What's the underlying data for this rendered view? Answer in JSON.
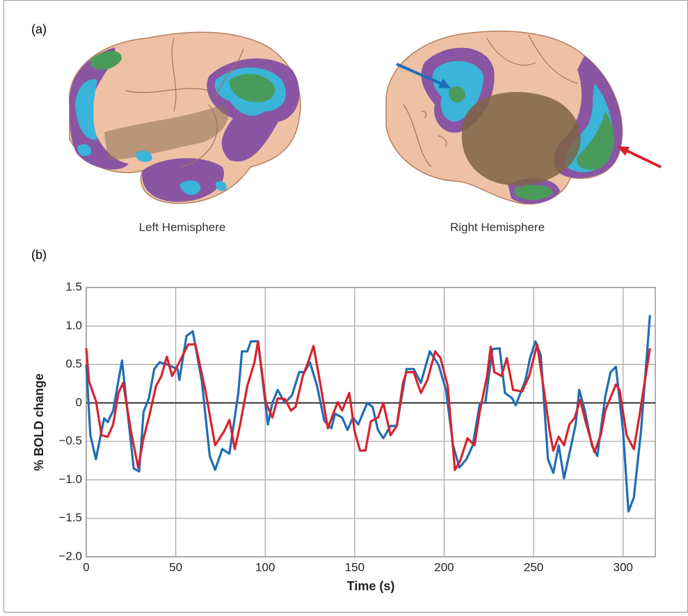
{
  "figure": {
    "panel_a": "(a)",
    "panel_b": "(b)",
    "left_caption": "Left Hemisphere",
    "right_caption": "Right Hemisphere"
  },
  "chart_data": {
    "type": "line",
    "xlabel": "Time (s)",
    "ylabel": "% BOLD change",
    "xlim": [
      0,
      318
    ],
    "ylim": [
      -2,
      1.5
    ],
    "xticks": [
      0,
      50,
      100,
      150,
      200,
      250,
      300
    ],
    "yticks": [
      {
        "value": 1.5,
        "label": "1.5"
      },
      {
        "value": 1,
        "label": "1.0"
      },
      {
        "value": 0.5,
        "label": "0.5"
      },
      0,
      {
        "value": -0.5,
        "label": "−0.5"
      },
      {
        "value": -1,
        "label": "−1.0"
      },
      {
        "value": -1.5,
        "label": "−1.5"
      },
      {
        "value": -2,
        "label": "−2.0"
      }
    ],
    "grid": true,
    "zero_line": true,
    "series": [
      {
        "color": "#1f6db5",
        "x": [
          0,
          2.3,
          5.4,
          10,
          12,
          15,
          20,
          26.5,
          29.6,
          32,
          35,
          38,
          41,
          45,
          51,
          52,
          56,
          59.5,
          64.6,
          69,
          72,
          76,
          80,
          85,
          87,
          90,
          92,
          96,
          101.5,
          104,
          107,
          111,
          115,
          119,
          122,
          125,
          129,
          133,
          137,
          139,
          143,
          146,
          149,
          152,
          157,
          160,
          163,
          166,
          170,
          173.5,
          179,
          183,
          187,
          192,
          197,
          201,
          205,
          208.5,
          212.5,
          216,
          220,
          223,
          227,
          231,
          234,
          238,
          240,
          245.5,
          248,
          251,
          254,
          258,
          261,
          264,
          267,
          271,
          273.5,
          275.5,
          278.6,
          282.5,
          285.6,
          290,
          293,
          296,
          300,
          303,
          306,
          310,
          313,
          315
        ],
        "values": [
          0.5,
          -0.42,
          -0.73,
          -0.2,
          -0.25,
          -0.1,
          0.55,
          -0.85,
          -0.89,
          -0.12,
          0.06,
          0.44,
          0.53,
          0.5,
          0.44,
          0.3,
          0.87,
          0.93,
          0.28,
          -0.69,
          -0.87,
          -0.6,
          -0.66,
          0.13,
          0.67,
          0.67,
          0.8,
          0.8,
          -0.28,
          0,
          0.17,
          0,
          0.1,
          0.4,
          0.4,
          0.53,
          0.22,
          -0.23,
          -0.33,
          -0.14,
          -0.19,
          -0.35,
          -0.19,
          -0.28,
          0,
          -0.05,
          -0.35,
          -0.46,
          -0.3,
          -0.3,
          0.44,
          0.44,
          0.26,
          0.67,
          0.49,
          0.17,
          -0.55,
          -0.84,
          -0.73,
          -0.55,
          0,
          0,
          0.7,
          0.71,
          0.13,
          0.06,
          -0.03,
          0.3,
          0.58,
          0.8,
          0.62,
          -0.73,
          -0.91,
          -0.55,
          -0.98,
          -0.55,
          -0.28,
          0.17,
          -0.1,
          -0.55,
          -0.69,
          0.08,
          0.4,
          0.47,
          -0.37,
          -1.41,
          -1.23,
          -0.37,
          0.53,
          1.14
        ]
      },
      {
        "color": "#d7232d",
        "x": [
          0,
          1.5,
          5.5,
          8.5,
          12,
          15,
          18,
          20.6,
          25,
          29,
          32,
          35,
          39,
          42,
          45,
          48,
          52,
          57,
          61,
          66.5,
          72,
          77,
          80,
          83,
          86,
          90,
          94,
          96,
          100.4,
          104,
          107,
          111,
          114.4,
          117,
          121,
          124,
          127,
          131,
          135,
          138,
          140.5,
          143,
          147,
          150,
          153,
          156,
          159,
          163,
          166,
          170,
          173.5,
          177,
          179,
          183,
          187,
          190.7,
          195,
          198,
          202,
          206,
          209,
          213,
          217,
          220,
          224,
          226,
          228,
          232,
          235,
          238.5,
          243.6,
          247.5,
          252,
          256,
          259,
          261,
          264,
          267,
          270,
          273,
          276,
          279,
          284,
          287.5,
          290,
          296,
          298,
          302,
          306,
          309,
          315
        ],
        "values": [
          0.71,
          0.28,
          0.02,
          -0.42,
          -0.44,
          -0.28,
          0.13,
          0.26,
          -0.37,
          -0.84,
          -0.46,
          -0.19,
          0.22,
          0.35,
          0.6,
          0.35,
          0.53,
          0.76,
          0.76,
          0.17,
          -0.55,
          -0.37,
          -0.22,
          -0.6,
          -0.28,
          0.22,
          0.53,
          0.8,
          0,
          -0.19,
          0.06,
          0.05,
          -0.1,
          -0.05,
          0.35,
          0.53,
          0.74,
          0.22,
          -0.33,
          -0.14,
          0.01,
          -0.1,
          0.13,
          -0.37,
          -0.62,
          -0.62,
          -0.24,
          -0.19,
          0,
          -0.42,
          -0.3,
          0.26,
          0.4,
          0.4,
          0.13,
          0.3,
          0.67,
          0.58,
          0.22,
          -0.87,
          -0.75,
          -0.46,
          -0.55,
          -0.1,
          0.35,
          0.73,
          0.4,
          0.35,
          0.58,
          0.17,
          0.15,
          0.35,
          0.76,
          0.13,
          -0.37,
          -0.62,
          -0.44,
          -0.55,
          -0.28,
          -0.19,
          0.04,
          -0.24,
          -0.64,
          -0.42,
          -0.1,
          0.24,
          0.17,
          -0.42,
          -0.6,
          -0.19,
          0.71
        ]
      }
    ]
  }
}
